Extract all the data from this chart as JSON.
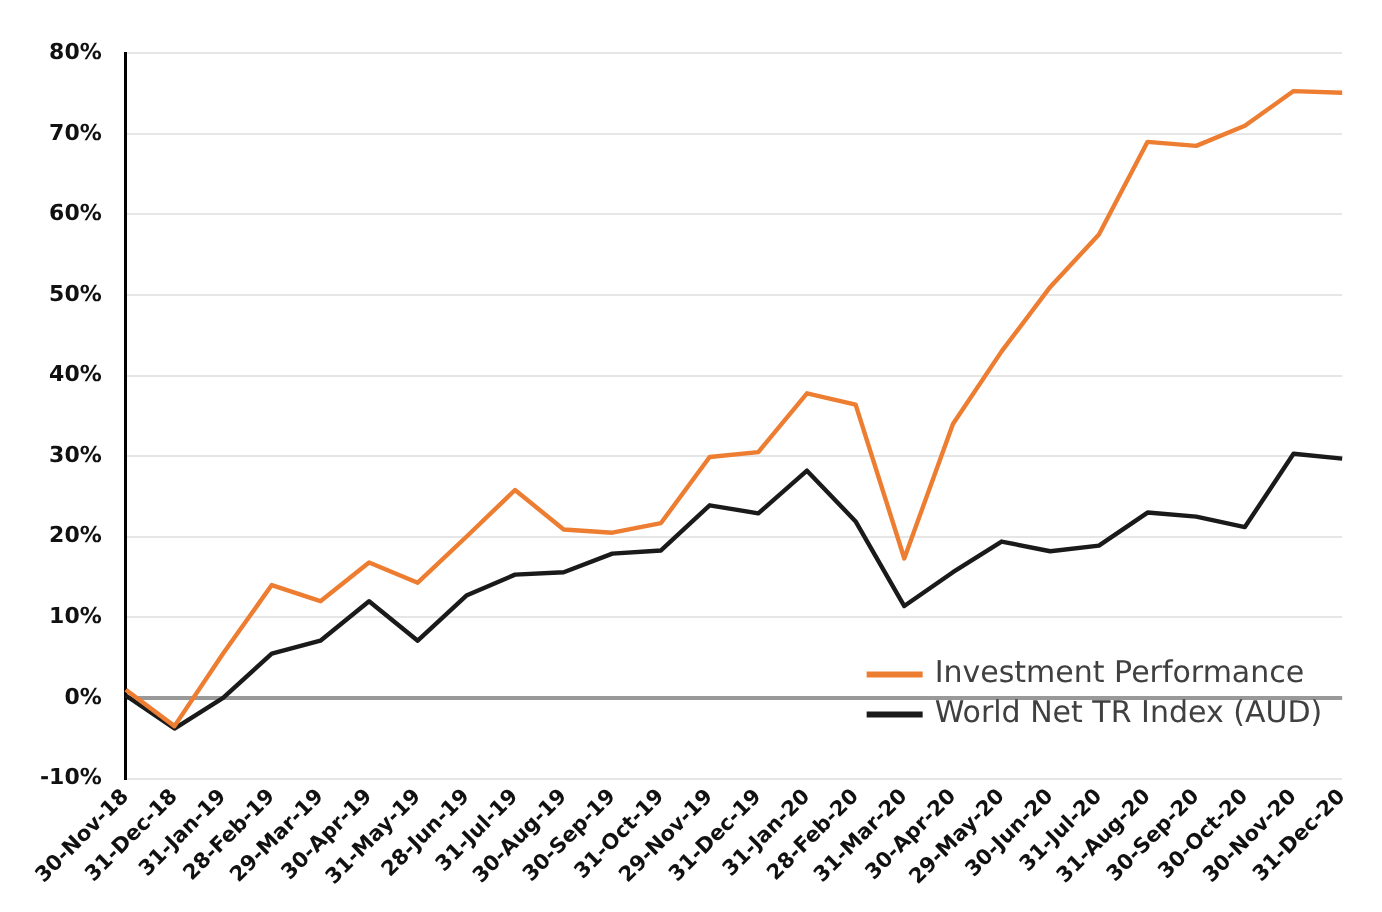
{
  "chart_data": {
    "type": "line",
    "categories": [
      "30-Nov-18",
      "31-Dec-18",
      "31-Jan-19",
      "28-Feb-19",
      "29-Mar-19",
      "30-Apr-19",
      "31-May-19",
      "28-Jun-19",
      "31-Jul-19",
      "30-Aug-19",
      "30-Sep-19",
      "31-Oct-19",
      "29-Nov-19",
      "31-Dec-19",
      "31-Jan-20",
      "28-Feb-20",
      "31-Mar-20",
      "30-Apr-20",
      "29-May-20",
      "30-Jun-20",
      "31-Jul-20",
      "31-Aug-20",
      "30-Sep-20",
      "30-Oct-20",
      "30-Nov-20",
      "31-Dec-20"
    ],
    "series": [
      {
        "name": "Investment Performance",
        "color": "#ed7d31",
        "values": [
          1,
          -3.5,
          5.5,
          14,
          12,
          16.8,
          14.3,
          20,
          25.8,
          20.9,
          20.5,
          21.7,
          29.9,
          30.5,
          37.8,
          36.4,
          17.3,
          34,
          43,
          51,
          57.5,
          69,
          68.5,
          71,
          75.3,
          75.1
        ]
      },
      {
        "name": "World Net TR Index (AUD)",
        "color": "#1a1a1a",
        "values": [
          0.3,
          -3.8,
          0,
          5.5,
          7.1,
          12,
          7.1,
          12.7,
          15.3,
          15.6,
          17.9,
          18.3,
          23.9,
          22.9,
          28.2,
          21.9,
          11.4,
          15.6,
          19.4,
          18.2,
          18.9,
          23,
          22.5,
          21.2,
          30.3,
          29.7
        ]
      }
    ],
    "ylim": [
      -10,
      80
    ],
    "yticks": [
      {
        "value": -10,
        "label": "-10%"
      },
      {
        "value": 0,
        "label": "0%"
      },
      {
        "value": 10,
        "label": "10%"
      },
      {
        "value": 20,
        "label": "20%"
      },
      {
        "value": 30,
        "label": "30%"
      },
      {
        "value": 40,
        "label": "40%"
      },
      {
        "value": 50,
        "label": "50%"
      },
      {
        "value": 60,
        "label": "60%"
      },
      {
        "value": 70,
        "label": "70%"
      },
      {
        "value": 80,
        "label": "80%"
      }
    ],
    "grid": "y",
    "legend": "bottom right",
    "marker": "none",
    "line_style": "solid"
  }
}
